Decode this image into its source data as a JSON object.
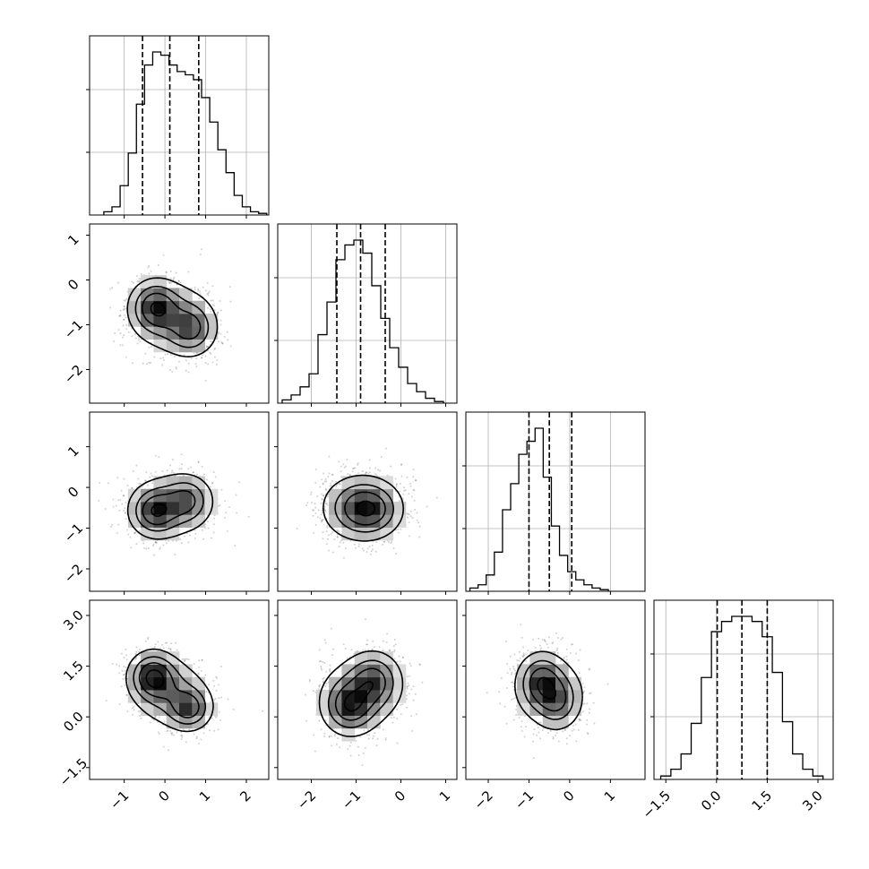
{
  "chart_data": {
    "type": "corner",
    "parameters": 4,
    "grid": true,
    "quantile_lines": "dashed",
    "axis_ranges": [
      [
        -1.85,
        2.55
      ],
      [
        -2.75,
        1.25
      ],
      [
        -2.55,
        1.85
      ],
      [
        -1.85,
        3.45
      ]
    ],
    "ticks": [
      {
        "values": [
          -1,
          0,
          1,
          2
        ],
        "labels": [
          "−1",
          "0",
          "1",
          "2"
        ]
      },
      {
        "values": [
          -2,
          -1,
          0,
          1
        ],
        "labels": [
          "−2",
          "−1",
          "0",
          "1"
        ]
      },
      {
        "values": [
          -2,
          -1,
          0,
          1
        ],
        "labels": [
          "−2",
          "−1",
          "0",
          "1"
        ]
      },
      {
        "values": [
          -1.5,
          0.0,
          1.5,
          3.0
        ],
        "labels": [
          "−1.5",
          "0.0",
          "1.5",
          "3.0"
        ]
      }
    ],
    "marginal_histograms": [
      {
        "parameter_index": 0,
        "bin_start": -1.5,
        "bin_width": 0.2,
        "counts": [
          2,
          5,
          18,
          38,
          68,
          92,
          100,
          98,
          92,
          88,
          86,
          83,
          72,
          57,
          40,
          26,
          12,
          5,
          2,
          1
        ],
        "quantiles": [
          -0.55,
          0.12,
          0.83
        ]
      },
      {
        "parameter_index": 1,
        "bin_start": -2.65,
        "bin_width": 0.2,
        "counts": [
          2,
          5,
          10,
          18,
          42,
          62,
          88,
          97,
          100,
          92,
          72,
          52,
          34,
          22,
          12,
          7,
          3,
          1
        ],
        "quantiles": [
          -1.43,
          -0.9,
          -0.35
        ]
      },
      {
        "parameter_index": 2,
        "bin_start": -2.45,
        "bin_width": 0.2,
        "counts": [
          2,
          4,
          10,
          24,
          50,
          66,
          84,
          92,
          100,
          70,
          40,
          22,
          12,
          7,
          4,
          2,
          1
        ],
        "quantiles": [
          -1.0,
          -0.5,
          0.05
        ]
      },
      {
        "parameter_index": 3,
        "bin_start": -1.65,
        "bin_width": 0.3,
        "counts": [
          2,
          6,
          15,
          33,
          60,
          87,
          93,
          96,
          96,
          93,
          84,
          63,
          34,
          15,
          6,
          2
        ],
        "quantiles": [
          0.02,
          0.75,
          1.5
        ]
      }
    ],
    "joint_panels": [
      {
        "x": 0,
        "y": 1,
        "components": [
          {
            "cx": -0.25,
            "cy": -0.6,
            "sx": 0.33,
            "sy": 0.32,
            "w": 1.0
          },
          {
            "cx": 0.65,
            "cy": -1.1,
            "sx": 0.33,
            "sy": 0.32,
            "w": 0.75
          },
          {
            "cx": 0.2,
            "cy": -0.85,
            "sx": 0.55,
            "sy": 0.45,
            "w": 0.55
          }
        ]
      },
      {
        "x": 0,
        "y": 2,
        "components": [
          {
            "cx": -0.25,
            "cy": -0.6,
            "sx": 0.32,
            "sy": 0.32,
            "w": 1.0
          },
          {
            "cx": 0.55,
            "cy": -0.3,
            "sx": 0.32,
            "sy": 0.32,
            "w": 0.7
          },
          {
            "cx": 0.15,
            "cy": -0.45,
            "sx": 0.55,
            "sy": 0.45,
            "w": 0.55
          }
        ]
      },
      {
        "x": 1,
        "y": 2,
        "components": [
          {
            "cx": -0.9,
            "cy": -0.5,
            "sx": 0.45,
            "sy": 0.42,
            "w": 1.0
          },
          {
            "cx": -0.6,
            "cy": -0.55,
            "sx": 0.35,
            "sy": 0.35,
            "w": 0.45
          }
        ]
      },
      {
        "x": 0,
        "y": 3,
        "components": [
          {
            "cx": -0.3,
            "cy": 1.2,
            "sx": 0.32,
            "sy": 0.4,
            "w": 1.0
          },
          {
            "cx": 0.6,
            "cy": 0.25,
            "sx": 0.3,
            "sy": 0.35,
            "w": 0.75
          },
          {
            "cx": 0.15,
            "cy": 0.7,
            "sx": 0.5,
            "sy": 0.55,
            "w": 0.5
          }
        ]
      },
      {
        "x": 1,
        "y": 3,
        "components": [
          {
            "cx": -1.15,
            "cy": 0.3,
            "sx": 0.32,
            "sy": 0.45,
            "w": 1.0
          },
          {
            "cx": -0.6,
            "cy": 1.1,
            "sx": 0.32,
            "sy": 0.45,
            "w": 0.85
          },
          {
            "cx": -0.9,
            "cy": 0.7,
            "sx": 0.5,
            "sy": 0.6,
            "w": 0.55
          }
        ]
      },
      {
        "x": 2,
        "y": 3,
        "components": [
          {
            "cx": -0.7,
            "cy": 1.05,
            "sx": 0.3,
            "sy": 0.45,
            "w": 1.0
          },
          {
            "cx": -0.3,
            "cy": 0.45,
            "sx": 0.3,
            "sy": 0.45,
            "w": 0.7
          },
          {
            "cx": -0.5,
            "cy": 0.75,
            "sx": 0.5,
            "sy": 0.6,
            "w": 0.5
          }
        ]
      }
    ]
  }
}
